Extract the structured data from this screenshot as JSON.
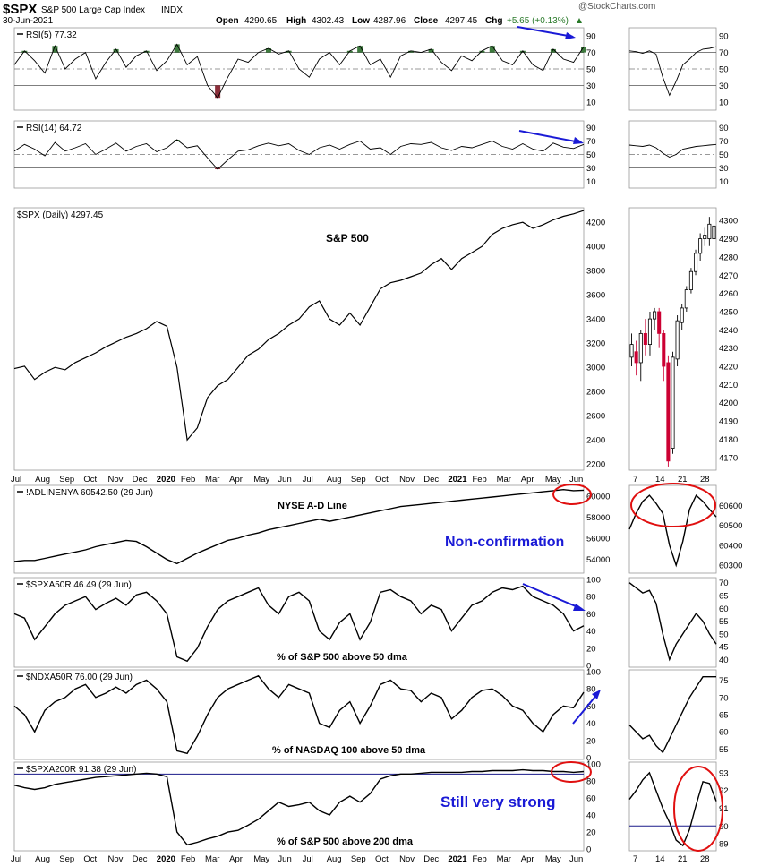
{
  "header": {
    "symbol": "$SPX",
    "name": "S&P 500 Large Cap Index",
    "exchange": "INDX",
    "date": "30-Jun-2021",
    "watermark": "@StockCharts.com",
    "open_label": "Open",
    "open": "4290.65",
    "high_label": "High",
    "high": "4302.43",
    "low_label": "Low",
    "low": "4287.96",
    "close_label": "Close",
    "close": "4297.45",
    "chg_label": "Chg",
    "chg": "+5.65 (+0.13%)"
  },
  "colors": {
    "line": "#000000",
    "up_fill": "#3d7a3d",
    "down_fill": "#8b2e3a",
    "candle_down": "#cc0033",
    "annotation": "#1a1ad6",
    "circle": "#e01010",
    "grid": "#cccccc"
  },
  "x_axis": {
    "months": [
      "Jul",
      "Aug",
      "Sep",
      "Oct",
      "Nov",
      "Dec",
      "2020",
      "Feb",
      "Mar",
      "Apr",
      "May",
      "Jun",
      "Jul",
      "Aug",
      "Sep",
      "Oct",
      "Nov",
      "Dec",
      "2021",
      "Feb",
      "Mar",
      "Apr",
      "May",
      "Jun"
    ],
    "zoom_days": [
      "7",
      "14",
      "21",
      "28"
    ]
  },
  "annotations": {
    "spx": "S&P 500",
    "adline": "NYSE A-D Line",
    "nonconf": "Non-confirmation",
    "spxa50": "% of S&P 500 above 50 dma",
    "ndxa50": "% of NASDAQ 100 above 50 dma",
    "strong": "Still very strong",
    "spxa200": "% of S&P 500 above 200 dma"
  },
  "chart_data": [
    {
      "type": "line",
      "id": "rsi5",
      "legend": "RSI(5) 77.32",
      "ticks": [
        10,
        30,
        50,
        70,
        90
      ],
      "ylim": [
        0,
        100
      ],
      "overbought": 70,
      "oversold": 30,
      "series": [
        {
          "values": [
            55,
            72,
            60,
            45,
            78,
            50,
            62,
            70,
            38,
            58,
            74,
            52,
            66,
            72,
            48,
            60,
            80,
            55,
            65,
            30,
            15,
            40,
            62,
            58,
            70,
            75,
            68,
            72,
            50,
            40,
            62,
            70,
            55,
            72,
            78,
            55,
            62,
            40,
            66,
            72,
            70,
            74,
            58,
            48,
            66,
            60,
            72,
            78,
            60,
            55,
            72,
            55,
            48,
            74,
            62,
            58,
            77
          ]
        }
      ],
      "zoom": [
        72,
        71,
        69,
        72,
        68,
        40,
        18,
        35,
        55,
        62,
        70,
        74,
        75,
        77
      ]
    },
    {
      "type": "line",
      "id": "rsi14",
      "legend": "RSI(14) 64.72",
      "ticks": [
        10,
        30,
        50,
        70,
        90
      ],
      "ylim": [
        0,
        100
      ],
      "overbought": 70,
      "oversold": 30,
      "series": [
        {
          "values": [
            55,
            65,
            58,
            48,
            68,
            55,
            60,
            66,
            50,
            58,
            67,
            55,
            62,
            66,
            54,
            60,
            72,
            60,
            63,
            45,
            28,
            42,
            55,
            57,
            63,
            67,
            63,
            66,
            56,
            50,
            60,
            64,
            58,
            65,
            70,
            58,
            60,
            50,
            62,
            66,
            65,
            68,
            60,
            56,
            62,
            60,
            65,
            70,
            62,
            58,
            66,
            58,
            55,
            67,
            61,
            59,
            65
          ]
        }
      ],
      "zoom": [
        64,
        63,
        62,
        64,
        60,
        52,
        46,
        50,
        58,
        60,
        62,
        63,
        64,
        65
      ]
    },
    {
      "type": "line",
      "id": "spx",
      "legend": "$SPX (Daily) 4297.45",
      "ticks": [
        2200,
        2400,
        2600,
        2800,
        3000,
        3200,
        3400,
        3600,
        3800,
        4000,
        4200
      ],
      "ylim": [
        2150,
        4320
      ],
      "series": [
        {
          "values": [
            2990,
            3010,
            2900,
            2960,
            3000,
            2980,
            3040,
            3080,
            3120,
            3170,
            3210,
            3250,
            3280,
            3320,
            3380,
            3340,
            3000,
            2400,
            2500,
            2750,
            2850,
            2900,
            3000,
            3100,
            3150,
            3230,
            3280,
            3350,
            3400,
            3500,
            3550,
            3400,
            3350,
            3450,
            3350,
            3500,
            3650,
            3700,
            3720,
            3750,
            3780,
            3850,
            3900,
            3810,
            3900,
            3950,
            4000,
            4100,
            4150,
            4180,
            4200,
            4150,
            4180,
            4220,
            4250,
            4270,
            4297
          ]
        }
      ],
      "zoom": {
        "ticks": [
          4170,
          4180,
          4190,
          4200,
          4210,
          4220,
          4230,
          4240,
          4250,
          4260,
          4270,
          4280,
          4290,
          4300
        ],
        "ylim": [
          4163,
          4307
        ],
        "candles": [
          [
            4225,
            4232,
            4220,
            4238
          ],
          [
            4228,
            4222,
            4215,
            4234
          ],
          [
            4222,
            4238,
            4212,
            4240
          ],
          [
            4238,
            4232,
            4226,
            4246
          ],
          [
            4232,
            4246,
            4226,
            4250
          ],
          [
            4246,
            4250,
            4240,
            4252
          ],
          [
            4250,
            4238,
            4230,
            4252
          ],
          [
            4238,
            4220,
            4212,
            4240
          ],
          [
            4222,
            4168,
            4165,
            4226
          ],
          [
            4175,
            4225,
            4172,
            4228
          ],
          [
            4224,
            4245,
            4220,
            4248
          ],
          [
            4244,
            4252,
            4240,
            4254
          ],
          [
            4252,
            4262,
            4250,
            4264
          ],
          [
            4262,
            4272,
            4260,
            4274
          ],
          [
            4272,
            4282,
            4270,
            4284
          ],
          [
            4282,
            4290,
            4278,
            4293
          ],
          [
            4290,
            4292,
            4286,
            4296
          ],
          [
            4290,
            4298,
            4286,
            4302
          ],
          [
            4290,
            4297,
            4288,
            4302
          ]
        ]
      }
    },
    {
      "type": "line",
      "id": "adline",
      "legend": "!ADLINENYA 60542.50 (29 Jun)",
      "ticks": [
        54000,
        56000,
        58000,
        60000
      ],
      "ylim": [
        52700,
        61000
      ],
      "series": [
        {
          "values": [
            53800,
            53900,
            53900,
            54100,
            54300,
            54500,
            54700,
            54900,
            55200,
            55400,
            55600,
            55800,
            55700,
            55200,
            54600,
            54000,
            53600,
            54100,
            54600,
            55000,
            55400,
            55800,
            56000,
            56300,
            56500,
            56800,
            57000,
            57200,
            57400,
            57600,
            57800,
            57600,
            57800,
            58000,
            58200,
            58400,
            58600,
            58800,
            59000,
            59100,
            59200,
            59300,
            59400,
            59500,
            59600,
            59700,
            59800,
            59900,
            60000,
            60100,
            60200,
            60300,
            60400,
            60500,
            60600,
            60500,
            60542
          ]
        }
      ],
      "zoom": {
        "ticks": [
          60300,
          60400,
          60500,
          60600
        ],
        "ylim": [
          60260,
          60700
        ],
        "values": [
          60480,
          60560,
          60620,
          60650,
          60610,
          60560,
          60400,
          60300,
          60420,
          60580,
          60650,
          60620,
          60580,
          60542
        ]
      }
    },
    {
      "type": "line",
      "id": "spxa50",
      "legend": "$SPXA50R 46.49 (29 Jun)",
      "ticks": [
        0,
        20,
        40,
        60,
        80,
        100
      ],
      "ylim": [
        -2,
        102
      ],
      "series": [
        {
          "values": [
            60,
            55,
            30,
            45,
            60,
            70,
            75,
            80,
            65,
            72,
            78,
            70,
            82,
            85,
            75,
            60,
            10,
            5,
            20,
            45,
            65,
            75,
            80,
            85,
            90,
            70,
            60,
            80,
            85,
            75,
            40,
            30,
            50,
            60,
            30,
            50,
            85,
            88,
            80,
            75,
            60,
            70,
            65,
            40,
            55,
            70,
            75,
            85,
            90,
            88,
            92,
            80,
            75,
            70,
            60,
            40,
            46
          ]
        }
      ],
      "zoom": {
        "ticks": [
          40,
          45,
          50,
          55,
          60,
          65,
          70
        ],
        "ylim": [
          37,
          72
        ],
        "values": [
          70,
          68,
          66,
          67,
          62,
          50,
          40,
          46,
          50,
          54,
          58,
          55,
          50,
          46
        ]
      }
    },
    {
      "type": "line",
      "id": "ndxa50",
      "legend": "$NDXA50R 76.00 (29 Jun)",
      "ticks": [
        0,
        20,
        40,
        60,
        80,
        100
      ],
      "ylim": [
        -2,
        102
      ],
      "series": [
        {
          "values": [
            60,
            50,
            30,
            55,
            65,
            70,
            80,
            85,
            70,
            75,
            82,
            75,
            85,
            90,
            80,
            65,
            8,
            5,
            25,
            50,
            70,
            80,
            85,
            90,
            95,
            80,
            70,
            85,
            80,
            75,
            40,
            35,
            55,
            65,
            40,
            60,
            85,
            90,
            80,
            78,
            65,
            75,
            70,
            45,
            55,
            70,
            78,
            80,
            72,
            60,
            55,
            40,
            30,
            50,
            60,
            58,
            76
          ]
        }
      ],
      "zoom": {
        "ticks": [
          55,
          60,
          65,
          70,
          75
        ],
        "ylim": [
          52,
          78
        ],
        "values": [
          62,
          60,
          58,
          59,
          56,
          54,
          58,
          62,
          66,
          70,
          73,
          76,
          76,
          76
        ]
      }
    },
    {
      "type": "line",
      "id": "spxa200",
      "legend": "$SPXA200R 91.38 (29 Jun)",
      "ticks": [
        0,
        20,
        40,
        60,
        80,
        100
      ],
      "ylim": [
        -2,
        102
      ],
      "ref": 88,
      "series": [
        {
          "values": [
            75,
            72,
            70,
            72,
            76,
            78,
            80,
            82,
            84,
            85,
            86,
            87,
            88,
            89,
            88,
            85,
            20,
            5,
            8,
            12,
            15,
            20,
            22,
            28,
            35,
            45,
            55,
            50,
            52,
            55,
            45,
            40,
            55,
            62,
            55,
            65,
            82,
            86,
            88,
            88,
            89,
            90,
            90,
            90,
            90,
            91,
            91,
            92,
            92,
            92,
            93,
            92,
            92,
            91,
            91,
            90,
            91
          ]
        }
      ],
      "zoom": {
        "ticks": [
          89,
          90,
          91,
          92,
          93
        ],
        "ylim": [
          88.6,
          93.6
        ],
        "ref": 90,
        "values": [
          91.5,
          92,
          92.6,
          93,
          92,
          91,
          90.2,
          89.2,
          88.9,
          89.8,
          91.2,
          92.5,
          92.4,
          91.4
        ]
      }
    }
  ]
}
